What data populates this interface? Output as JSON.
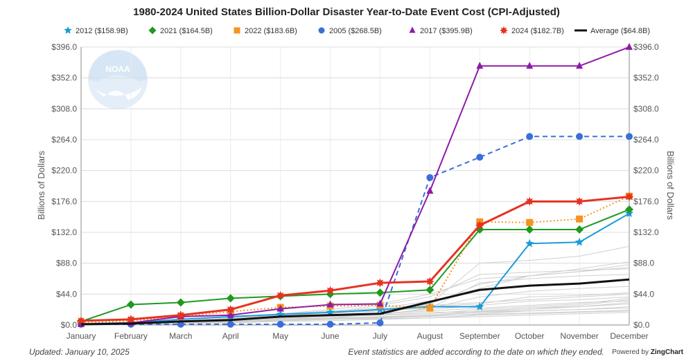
{
  "chart_data": {
    "type": "line",
    "title": "1980-2024 United States Billion-Dollar Disaster Year-to-Date Event Cost (CPI-Adjusted)",
    "ylabel": "Billions of Dollars",
    "ylabel_right": "Billions of Dollars",
    "xlabel": "",
    "categories": [
      "January",
      "February",
      "March",
      "April",
      "May",
      "June",
      "July",
      "August",
      "September",
      "October",
      "November",
      "December"
    ],
    "ylim": [
      0,
      396
    ],
    "y_ticks": [
      0,
      44,
      88,
      132,
      176,
      220,
      264,
      308,
      352,
      396
    ],
    "y_tick_labels": [
      "$0.0",
      "$44.0",
      "$88.0",
      "$132.0",
      "$176.0",
      "$220.0",
      "$264.0",
      "$308.0",
      "$352.0",
      "$396.0"
    ],
    "y_tick_labels_right": [
      "$0.0",
      "$44.0",
      "$88.0",
      "$132.0",
      "$176.0",
      "$220.0",
      "$264.0",
      "$308.0",
      "$352.0",
      "$396.0"
    ],
    "grid": true,
    "legend_position": "top",
    "series": [
      {
        "name": "2012 ($158.9B)",
        "color": "#1a9bd7",
        "marker": "star",
        "style": "solid",
        "values": [
          2,
          3,
          8,
          12,
          15,
          18,
          22,
          26,
          26,
          116,
          118,
          158.9
        ]
      },
      {
        "name": "2021 ($164.5B)",
        "color": "#1f9a1f",
        "marker": "diamond",
        "style": "solid",
        "values": [
          5,
          29,
          32,
          38,
          41,
          44,
          46,
          50,
          136,
          136,
          136,
          164.5
        ]
      },
      {
        "name": "2022 ($183.6B)",
        "color": "#f7941d",
        "marker": "square",
        "style": "dotted",
        "values": [
          3,
          6,
          12,
          19,
          25,
          27,
          28,
          24,
          147,
          146,
          151,
          183.6
        ]
      },
      {
        "name": "2005 ($268.5B)",
        "color": "#3a6fd8",
        "marker": "circle",
        "style": "dashed",
        "values": [
          1,
          1,
          1,
          1,
          1,
          1,
          3,
          210,
          239,
          268.5,
          268.5,
          268.5
        ]
      },
      {
        "name": "2017 ($395.9B)",
        "color": "#8e1aa8",
        "marker": "triangle",
        "style": "solid",
        "values": [
          1,
          3,
          12,
          14,
          23,
          29,
          30,
          191,
          369,
          369,
          369,
          395.9
        ]
      },
      {
        "name": "2024 ($182.7B)",
        "color": "#e53222",
        "marker": "asterisk",
        "style": "solid-thick",
        "values": [
          6,
          8,
          14,
          22,
          42,
          49,
          60,
          62,
          142,
          176,
          176,
          182.7
        ]
      },
      {
        "name": "Average ($64.8B)",
        "color": "#111111",
        "marker": "none",
        "style": "solid-thick",
        "values": [
          1,
          2,
          5,
          7,
          12,
          14,
          16,
          33,
          50,
          56,
          59,
          64.8
        ]
      }
    ],
    "background_years": [
      [
        1,
        2,
        3,
        5,
        6,
        8,
        9,
        10,
        14,
        16,
        18,
        20
      ],
      [
        0,
        0,
        2,
        3,
        8,
        9,
        11,
        14,
        18,
        22,
        26,
        30
      ],
      [
        2,
        3,
        4,
        8,
        9,
        12,
        14,
        18,
        19,
        24,
        26,
        32
      ],
      [
        0,
        2,
        4,
        6,
        8,
        12,
        14,
        24,
        40,
        48,
        52,
        55
      ],
      [
        1,
        3,
        6,
        8,
        12,
        14,
        20,
        28,
        32,
        36,
        40,
        44
      ],
      [
        2,
        3,
        5,
        10,
        16,
        20,
        24,
        34,
        52,
        70,
        76,
        82
      ],
      [
        0,
        1,
        2,
        4,
        8,
        10,
        16,
        30,
        58,
        70,
        80,
        90
      ],
      [
        1,
        2,
        4,
        6,
        10,
        14,
        16,
        22,
        28,
        34,
        36,
        40
      ],
      [
        0,
        1,
        3,
        5,
        7,
        8,
        10,
        12,
        16,
        20,
        22,
        24
      ],
      [
        1,
        3,
        6,
        10,
        14,
        18,
        28,
        40,
        72,
        75,
        78,
        80
      ],
      [
        0,
        2,
        4,
        6,
        8,
        10,
        12,
        14,
        18,
        20,
        22,
        26
      ],
      [
        1,
        2,
        4,
        8,
        14,
        18,
        20,
        24,
        60,
        66,
        70,
        72
      ],
      [
        2,
        3,
        6,
        9,
        12,
        18,
        22,
        30,
        88,
        92,
        98,
        112
      ],
      [
        0,
        1,
        2,
        4,
        6,
        8,
        10,
        14,
        20,
        24,
        28,
        36
      ],
      [
        1,
        2,
        3,
        5,
        7,
        9,
        11,
        13,
        15,
        17,
        19,
        21
      ],
      [
        0,
        1,
        3,
        6,
        10,
        16,
        22,
        26,
        30,
        40,
        42,
        46
      ],
      [
        1,
        2,
        4,
        6,
        9,
        12,
        16,
        20,
        24,
        28,
        32,
        34
      ],
      [
        0,
        2,
        3,
        5,
        8,
        12,
        14,
        16,
        22,
        26,
        30,
        38
      ],
      [
        2,
        4,
        6,
        10,
        16,
        22,
        30,
        44,
        66,
        70,
        76,
        86
      ],
      [
        0,
        1,
        2,
        3,
        5,
        6,
        8,
        10,
        12,
        14,
        16,
        18
      ]
    ]
  },
  "footer": {
    "updated": "Updated: January 10, 2025",
    "note": "Event statistics are added according to the date on which they ended.",
    "powered_prefix": "Powered by",
    "powered_brand": "ZingChart"
  },
  "logo": {
    "text": "NOAA"
  }
}
